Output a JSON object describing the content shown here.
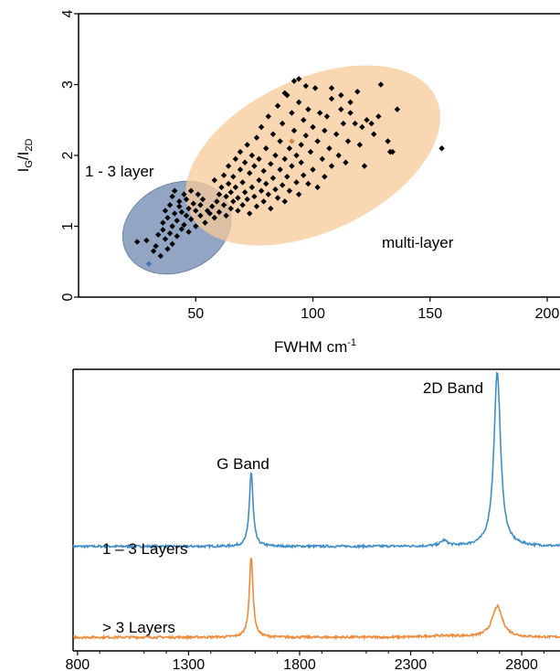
{
  "chart_data": [
    {
      "type": "scatter",
      "xlabel": "FWHM",
      "xlabel_unit": "cm",
      "xlabel_unit_exp": "-1",
      "ylabel_main": "I",
      "ylabel_sub1": "G",
      "ylabel_slash": "/I",
      "ylabel_sub2": "2D",
      "xlim": [
        0,
        200
      ],
      "ylim": [
        0,
        4
      ],
      "x_ticks": [
        "50",
        "100",
        "150",
        "200"
      ],
      "y_ticks": [
        "0",
        "1",
        "2",
        "3",
        "4"
      ],
      "grid": false,
      "annotations": {
        "small": "1 - 3 layer",
        "large": "multi-layer"
      },
      "regions": [
        {
          "label": "1 - 3 layer",
          "color": "#7f96b8",
          "center": [
            42,
            0.98
          ],
          "rx": 24,
          "ry": 0.62
        },
        {
          "label": "multi-layer",
          "color": "#f7c99a",
          "center": [
            100,
            2.0
          ],
          "rx": 58,
          "ry": 1.08
        }
      ],
      "highlight_points": [
        {
          "x": 30,
          "y": 0.47,
          "color": "#4a72b0"
        },
        {
          "x": 91,
          "y": 2.2,
          "color": "#d4824a"
        }
      ],
      "series": [
        {
          "color": "#000000",
          "points": [
            [
              25,
              0.78
            ],
            [
              29,
              0.8
            ],
            [
              32,
              0.65
            ],
            [
              33,
              0.72
            ],
            [
              34,
              0.88
            ],
            [
              35,
              0.58
            ],
            [
              36,
              0.95
            ],
            [
              36,
              1.05
            ],
            [
              37,
              0.82
            ],
            [
              37,
              1.22
            ],
            [
              38,
              0.68
            ],
            [
              38,
              1.12
            ],
            [
              39,
              1.3
            ],
            [
              39,
              0.9
            ],
            [
              40,
              1.0
            ],
            [
              40,
              1.42
            ],
            [
              40,
              0.75
            ],
            [
              41,
              1.18
            ],
            [
              41,
              1.5
            ],
            [
              42,
              0.86
            ],
            [
              42,
              1.08
            ],
            [
              43,
              1.35
            ],
            [
              43,
              1.28
            ],
            [
              44,
              0.96
            ],
            [
              44,
              1.2
            ],
            [
              45,
              1.45
            ],
            [
              45,
              1.02
            ],
            [
              46,
              1.15
            ],
            [
              46,
              1.38
            ],
            [
              47,
              0.92
            ],
            [
              47,
              1.25
            ],
            [
              48,
              1.5
            ],
            [
              48,
              1.1
            ],
            [
              49,
              1.32
            ],
            [
              50,
              1.0
            ],
            [
              50,
              1.22
            ],
            [
              51,
              1.45
            ],
            [
              52,
              1.15
            ],
            [
              52,
              1.3
            ],
            [
              53,
              1.38
            ],
            [
              54,
              1.05
            ],
            [
              55,
              1.22
            ],
            [
              56,
              1.18
            ],
            [
              57,
              1.28
            ],
            [
              58,
              1.12
            ],
            [
              58,
              1.65
            ],
            [
              59,
              1.35
            ],
            [
              60,
              1.45
            ],
            [
              60,
              1.2
            ],
            [
              61,
              1.55
            ],
            [
              62,
              1.3
            ],
            [
              62,
              1.72
            ],
            [
              63,
              1.42
            ],
            [
              63,
              1.15
            ],
            [
              64,
              1.6
            ],
            [
              64,
              1.85
            ],
            [
              65,
              1.25
            ],
            [
              65,
              1.48
            ],
            [
              66,
              1.7
            ],
            [
              66,
              1.35
            ],
            [
              67,
              1.95
            ],
            [
              67,
              1.55
            ],
            [
              68,
              1.22
            ],
            [
              68,
              1.4
            ],
            [
              69,
              1.8
            ],
            [
              69,
              2.05
            ],
            [
              70,
              1.3
            ],
            [
              70,
              1.62
            ],
            [
              71,
              1.48
            ],
            [
              71,
              1.9
            ],
            [
              72,
              2.15
            ],
            [
              72,
              1.38
            ],
            [
              73,
              1.75
            ],
            [
              73,
              1.18
            ],
            [
              74,
              1.55
            ],
            [
              74,
              2.0
            ],
            [
              75,
              1.42
            ],
            [
              75,
              1.85
            ],
            [
              76,
              2.25
            ],
            [
              76,
              1.28
            ],
            [
              77,
              1.65
            ],
            [
              77,
              1.95
            ],
            [
              78,
              1.5
            ],
            [
              78,
              2.4
            ],
            [
              79,
              1.35
            ],
            [
              79,
              1.78
            ],
            [
              80,
              2.1
            ],
            [
              80,
              1.6
            ],
            [
              81,
              1.45
            ],
            [
              81,
              2.55
            ],
            [
              82,
              1.88
            ],
            [
              82,
              1.25
            ],
            [
              83,
              2.3
            ],
            [
              83,
              1.68
            ],
            [
              84,
              1.52
            ],
            [
              84,
              2.0
            ],
            [
              85,
              2.7
            ],
            [
              85,
              1.4
            ],
            [
              86,
              1.8
            ],
            [
              86,
              2.2
            ],
            [
              87,
              1.58
            ],
            [
              87,
              2.45
            ],
            [
              88,
              1.35
            ],
            [
              88,
              1.95
            ],
            [
              89,
              2.85
            ],
            [
              89,
              1.7
            ],
            [
              90,
              2.1
            ],
            [
              90,
              1.5
            ],
            [
              91,
              2.6
            ],
            [
              91,
              1.85
            ],
            [
              92,
              3.05
            ],
            [
              92,
              2.35
            ],
            [
              93,
              1.62
            ],
            [
              93,
              2.0
            ],
            [
              94,
              2.75
            ],
            [
              94,
              1.45
            ],
            [
              95,
              2.15
            ],
            [
              95,
              1.9
            ],
            [
              96,
              2.5
            ],
            [
              96,
              1.72
            ],
            [
              97,
              2.28
            ],
            [
              98,
              1.6
            ],
            [
              98,
              2.65
            ],
            [
              99,
              2.05
            ],
            [
              100,
              1.8
            ],
            [
              100,
              2.4
            ],
            [
              101,
              2.95
            ],
            [
              102,
              2.2
            ],
            [
              102,
              1.55
            ],
            [
              103,
              2.6
            ],
            [
              104,
              1.95
            ],
            [
              105,
              2.35
            ],
            [
              105,
              1.7
            ],
            [
              106,
              2.55
            ],
            [
              107,
              2.1
            ],
            [
              108,
              2.8
            ],
            [
              108,
              1.85
            ],
            [
              110,
              2.3
            ],
            [
              111,
              2.0
            ],
            [
              112,
              2.65
            ],
            [
              113,
              2.45
            ],
            [
              114,
              1.9
            ],
            [
              115,
              2.2
            ],
            [
              116,
              2.6
            ],
            [
              118,
              2.45
            ],
            [
              119,
              2.9
            ],
            [
              120,
              2.15
            ],
            [
              121,
              2.4
            ],
            [
              122,
              1.85
            ],
            [
              123,
              2.5
            ],
            [
              125,
              2.45
            ],
            [
              126,
              2.3
            ],
            [
              128,
              2.55
            ],
            [
              129,
              3.0
            ],
            [
              132,
              2.2
            ],
            [
              133,
              2.05
            ],
            [
              134,
              2.05
            ],
            [
              136,
              2.65
            ],
            [
              155,
              2.1
            ],
            [
              94,
              3.08
            ],
            [
              88,
              2.88
            ],
            [
              97,
              2.98
            ],
            [
              108,
              2.95
            ],
            [
              112,
              2.85
            ],
            [
              116,
              2.75
            ]
          ]
        }
      ]
    },
    {
      "type": "line",
      "xlim": [
        780,
        3030
      ],
      "x_ticks": [
        "800",
        "1300",
        "1800",
        "2300",
        "2800"
      ],
      "grid": false,
      "annotations": {
        "g_band": "G Band",
        "d2_band": "2D Band"
      },
      "series": [
        {
          "name": "1 – 3 Layers",
          "color": "#3f8ec9",
          "baseline": 1.0,
          "peaks": [
            {
              "x": 1582,
              "height": 0.82,
              "width": 10
            },
            {
              "x": 2450,
              "height": 0.06,
              "width": 18
            },
            {
              "x": 2690,
              "height": 1.92,
              "width": 18
            }
          ]
        },
        {
          "name": "> 3 Layers",
          "color": "#f08a3a",
          "baseline": 0.0,
          "peaks": [
            {
              "x": 1582,
              "height": 0.88,
              "width": 10
            },
            {
              "x": 2690,
              "height": 0.34,
              "width": 28
            }
          ]
        }
      ],
      "ylim": [
        -0.15,
        2.95
      ]
    }
  ]
}
